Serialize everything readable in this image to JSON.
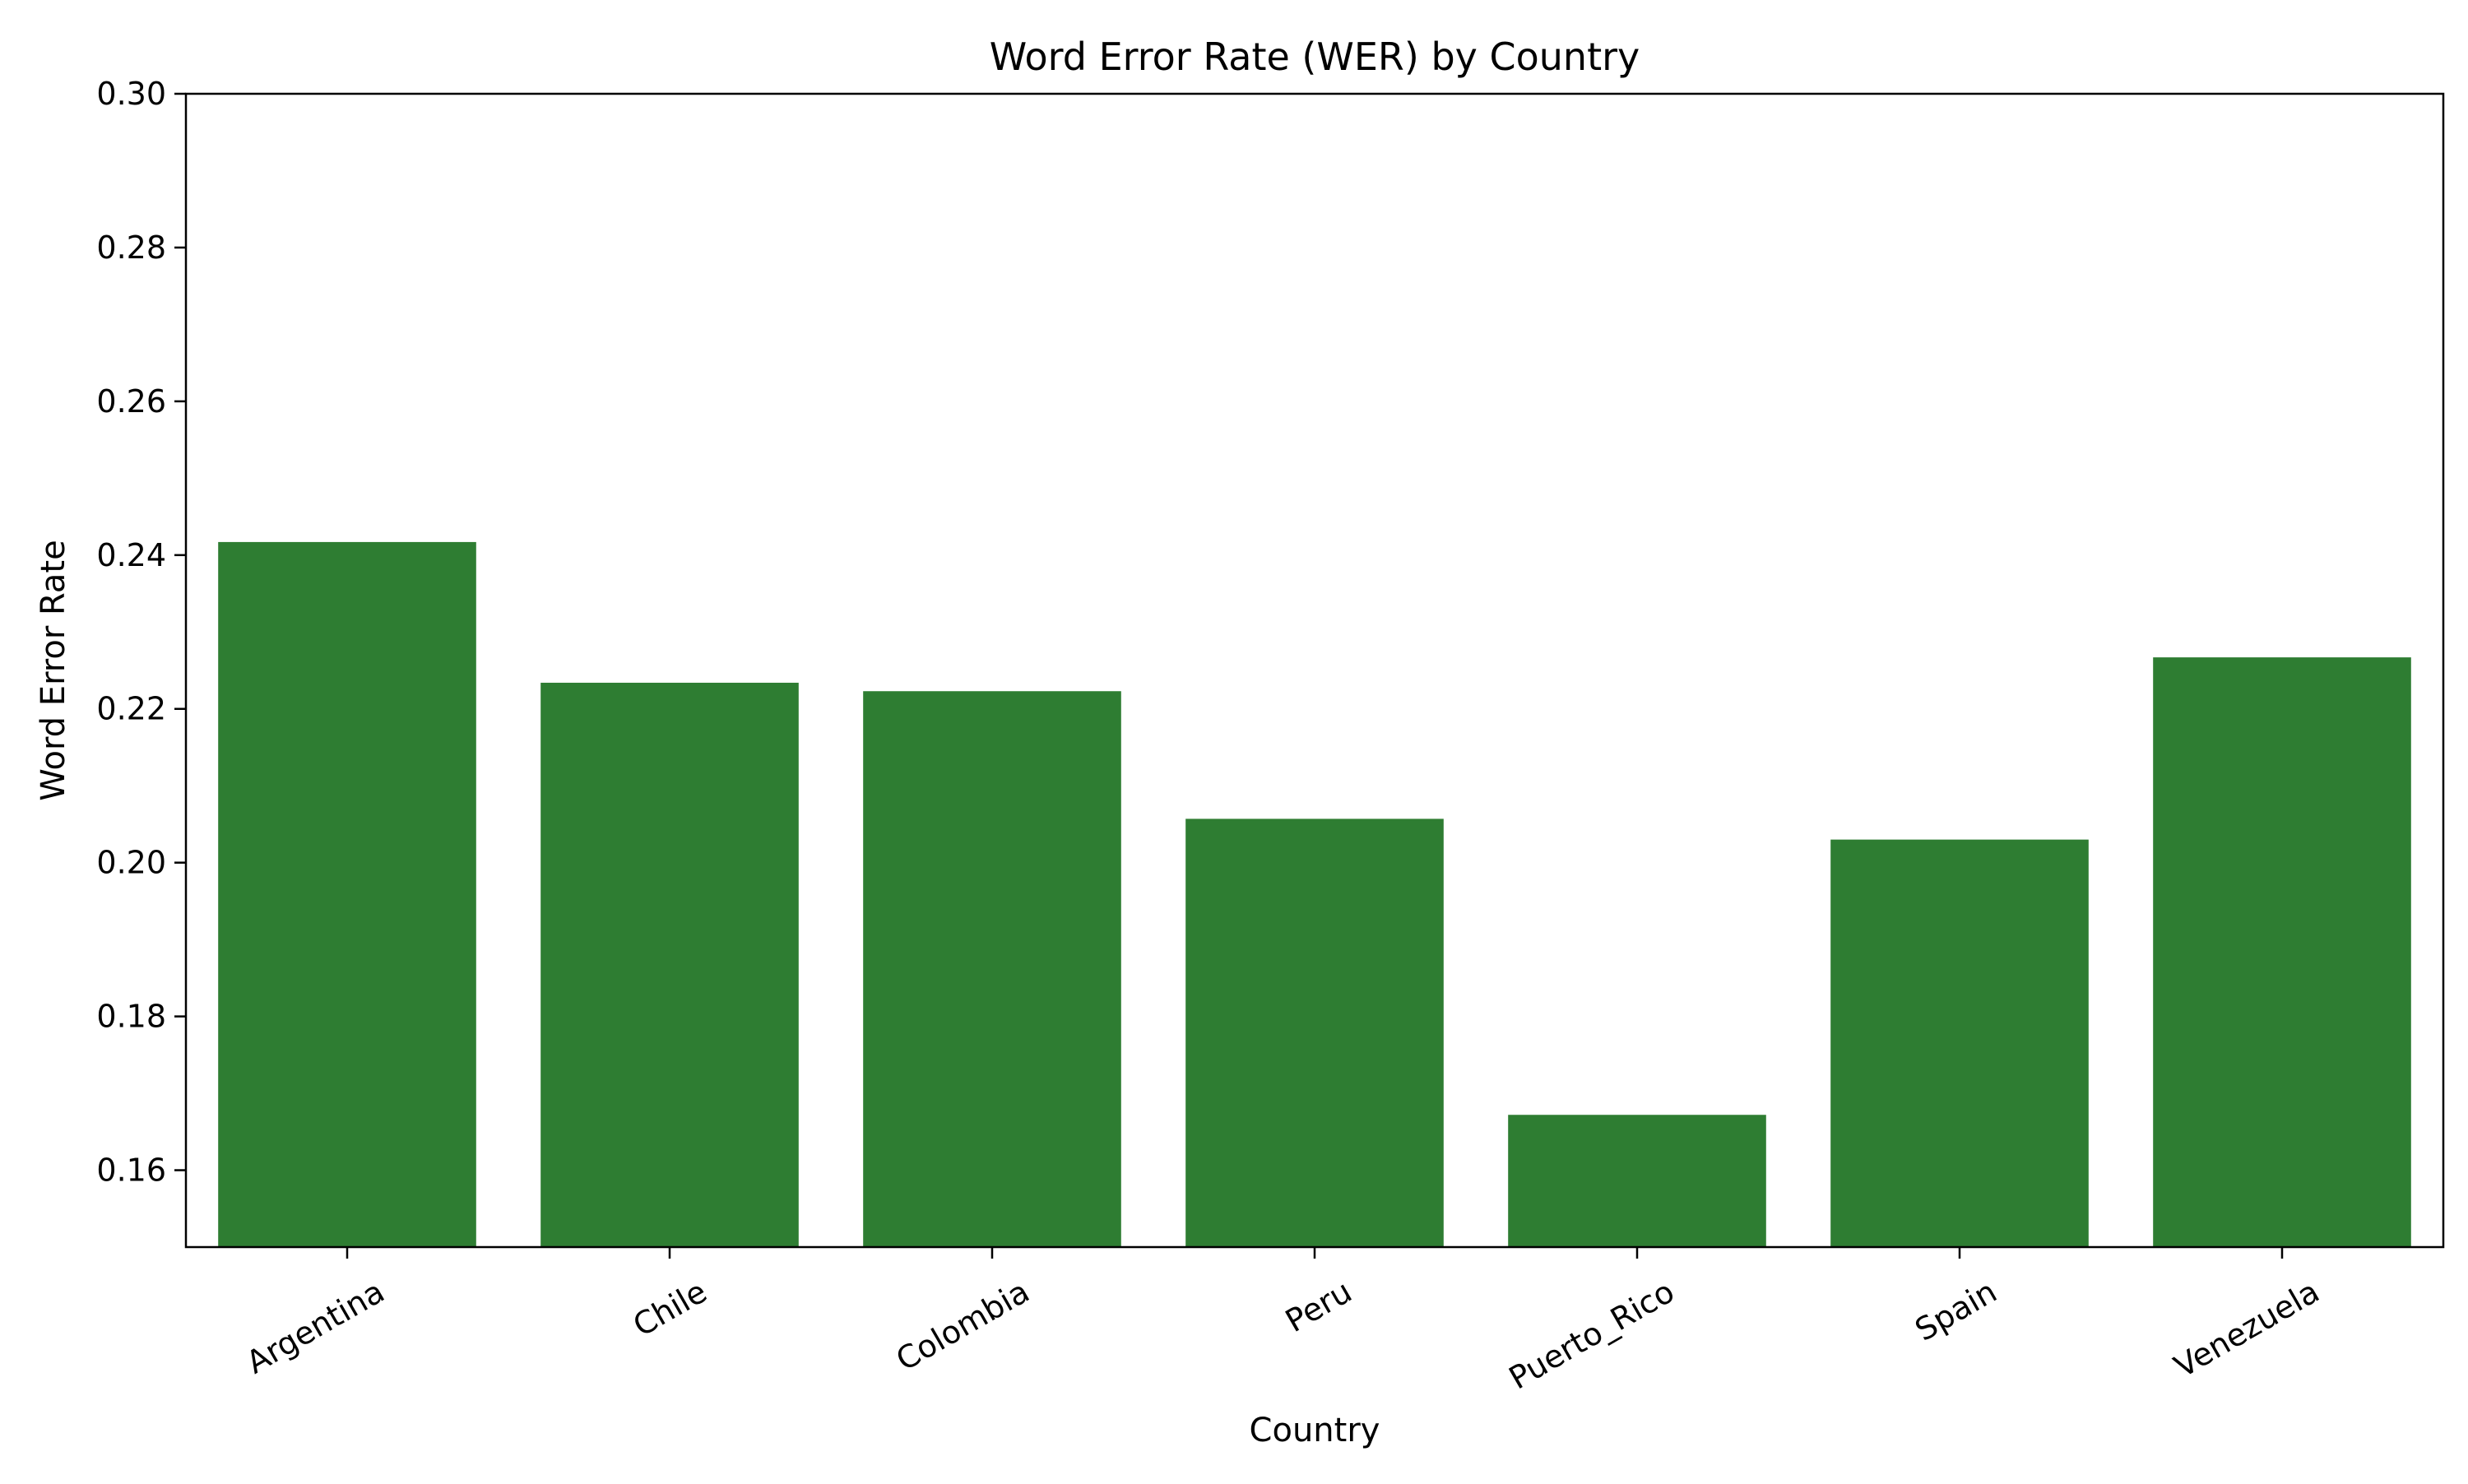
{
  "chart_data": {
    "type": "bar",
    "title": "Word Error Rate (WER) by Country",
    "xlabel": "Country",
    "ylabel": "Word Error Rate",
    "categories": [
      "Argentina",
      "Chile",
      "Colombia",
      "Peru",
      "Puerto_Rico",
      "Spain",
      "Venezuela"
    ],
    "values": [
      0.2417,
      0.2234,
      0.2223,
      0.2057,
      0.1672,
      0.203,
      0.2267
    ],
    "ylim": [
      0.15,
      0.3
    ],
    "yticks": [
      "0.16",
      "0.18",
      "0.20",
      "0.22",
      "0.24",
      "0.26",
      "0.28",
      "0.30"
    ],
    "bar_color": "#2e7d32",
    "grid": false,
    "legend": "none"
  }
}
